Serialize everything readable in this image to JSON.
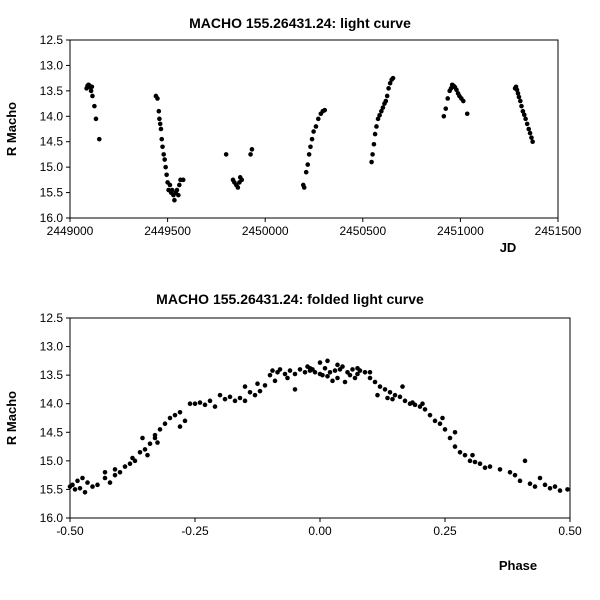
{
  "chart_data": [
    {
      "type": "scatter",
      "title": "MACHO 155.26431.24: light curve",
      "xlabel": "JD",
      "ylabel": "R Macho",
      "xlim": [
        2449000,
        2451500
      ],
      "ylim": [
        12.5,
        16.0
      ],
      "y_inverted": true,
      "grid": false,
      "xticks": [
        "2449000",
        "2449500",
        "2450000",
        "2450500",
        "2451000",
        "2451500"
      ],
      "yticks": [
        "12.5",
        "13.0",
        "13.5",
        "14.0",
        "14.5",
        "15.0",
        "15.5",
        "16.0"
      ],
      "series": [
        {
          "points": [
            [
              2449085,
              13.45
            ],
            [
              2449090,
              13.4
            ],
            [
              2449095,
              13.38
            ],
            [
              2449100,
              13.4
            ],
            [
              2449105,
              13.43
            ],
            [
              2449108,
              13.5
            ],
            [
              2449112,
              13.42
            ],
            [
              2449115,
              13.6
            ],
            [
              2449125,
              13.8
            ],
            [
              2449133,
              14.05
            ],
            [
              2449150,
              14.45
            ],
            [
              2449440,
              13.6
            ],
            [
              2449448,
              13.65
            ],
            [
              2449455,
              13.9
            ],
            [
              2449458,
              14.05
            ],
            [
              2449462,
              14.15
            ],
            [
              2449466,
              14.25
            ],
            [
              2449470,
              14.45
            ],
            [
              2449474,
              14.6
            ],
            [
              2449480,
              14.75
            ],
            [
              2449485,
              14.85
            ],
            [
              2449490,
              15.0
            ],
            [
              2449495,
              15.15
            ],
            [
              2449500,
              15.3
            ],
            [
              2449505,
              15.45
            ],
            [
              2449512,
              15.35
            ],
            [
              2449518,
              15.5
            ],
            [
              2449523,
              15.45
            ],
            [
              2449530,
              15.55
            ],
            [
              2449535,
              15.65
            ],
            [
              2449542,
              15.5
            ],
            [
              2449548,
              15.45
            ],
            [
              2449555,
              15.55
            ],
            [
              2449560,
              15.35
            ],
            [
              2449566,
              15.25
            ],
            [
              2449580,
              15.25
            ],
            [
              2449800,
              14.75
            ],
            [
              2449835,
              15.25
            ],
            [
              2449842,
              15.3
            ],
            [
              2449852,
              15.35
            ],
            [
              2449860,
              15.4
            ],
            [
              2449868,
              15.3
            ],
            [
              2449872,
              15.2
            ],
            [
              2449880,
              15.25
            ],
            [
              2449925,
              14.75
            ],
            [
              2449932,
              14.65
            ],
            [
              2450195,
              15.35
            ],
            [
              2450200,
              15.4
            ],
            [
              2450210,
              15.1
            ],
            [
              2450218,
              14.95
            ],
            [
              2450225,
              14.75
            ],
            [
              2450232,
              14.6
            ],
            [
              2450240,
              14.45
            ],
            [
              2450248,
              14.3
            ],
            [
              2450260,
              14.2
            ],
            [
              2450272,
              14.05
            ],
            [
              2450285,
              13.95
            ],
            [
              2450295,
              13.9
            ],
            [
              2450305,
              13.88
            ],
            [
              2450545,
              14.9
            ],
            [
              2450550,
              14.75
            ],
            [
              2450557,
              14.55
            ],
            [
              2450563,
              14.35
            ],
            [
              2450570,
              14.2
            ],
            [
              2450578,
              14.05
            ],
            [
              2450586,
              13.98
            ],
            [
              2450595,
              13.9
            ],
            [
              2450603,
              13.83
            ],
            [
              2450611,
              13.75
            ],
            [
              2450618,
              13.7
            ],
            [
              2450625,
              13.6
            ],
            [
              2450632,
              13.45
            ],
            [
              2450640,
              13.35
            ],
            [
              2450648,
              13.28
            ],
            [
              2450655,
              13.25
            ],
            [
              2450915,
              14.0
            ],
            [
              2450925,
              13.85
            ],
            [
              2450935,
              13.65
            ],
            [
              2450945,
              13.5
            ],
            [
              2450952,
              13.45
            ],
            [
              2450958,
              13.38
            ],
            [
              2450965,
              13.4
            ],
            [
              2450972,
              13.43
            ],
            [
              2450980,
              13.48
            ],
            [
              2450988,
              13.55
            ],
            [
              2450995,
              13.6
            ],
            [
              2451005,
              13.65
            ],
            [
              2451015,
              13.7
            ],
            [
              2451035,
              13.95
            ],
            [
              2451280,
              13.45
            ],
            [
              2451285,
              13.42
            ],
            [
              2451290,
              13.48
            ],
            [
              2451295,
              13.55
            ],
            [
              2451300,
              13.62
            ],
            [
              2451307,
              13.7
            ],
            [
              2451313,
              13.8
            ],
            [
              2451320,
              13.9
            ],
            [
              2451327,
              13.97
            ],
            [
              2451334,
              14.05
            ],
            [
              2451342,
              14.15
            ],
            [
              2451350,
              14.25
            ],
            [
              2451357,
              14.33
            ],
            [
              2451364,
              14.42
            ],
            [
              2451370,
              14.5
            ]
          ]
        }
      ]
    },
    {
      "type": "scatter",
      "title": "MACHO 155.26431.24: folded light curve",
      "xlabel": "Phase",
      "ylabel": "R Macho",
      "xlim": [
        -0.5,
        0.5
      ],
      "ylim": [
        12.5,
        16.0
      ],
      "y_inverted": true,
      "grid": false,
      "xticks": [
        "-0.50",
        "-0.25",
        "0.00",
        "0.25",
        "0.50"
      ],
      "yticks": [
        "12.5",
        "13.0",
        "13.5",
        "14.0",
        "14.5",
        "15.0",
        "15.5",
        "16.0"
      ],
      "series": [
        {
          "points": [
            [
              -0.5,
              15.45
            ],
            [
              -0.495,
              15.42
            ],
            [
              -0.49,
              15.5
            ],
            [
              -0.485,
              15.35
            ],
            [
              -0.48,
              15.48
            ],
            [
              -0.475,
              15.3
            ],
            [
              -0.47,
              15.55
            ],
            [
              -0.465,
              15.38
            ],
            [
              -0.455,
              15.45
            ],
            [
              -0.445,
              15.42
            ],
            [
              -0.43,
              15.3
            ],
            [
              -0.42,
              15.38
            ],
            [
              -0.41,
              15.25
            ],
            [
              -0.4,
              15.2
            ],
            [
              -0.39,
              15.1
            ],
            [
              -0.38,
              15.05
            ],
            [
              -0.375,
              14.95
            ],
            [
              -0.37,
              15.0
            ],
            [
              -0.36,
              14.85
            ],
            [
              -0.35,
              14.8
            ],
            [
              -0.345,
              14.9
            ],
            [
              -0.34,
              14.7
            ],
            [
              -0.33,
              14.6
            ],
            [
              -0.325,
              14.68
            ],
            [
              -0.32,
              14.45
            ],
            [
              -0.31,
              14.35
            ],
            [
              -0.3,
              14.25
            ],
            [
              -0.29,
              14.2
            ],
            [
              -0.28,
              14.15
            ],
            [
              -0.27,
              14.3
            ],
            [
              -0.25,
              14.0
            ],
            [
              -0.24,
              13.98
            ],
            [
              -0.23,
              14.02
            ],
            [
              -0.22,
              13.95
            ],
            [
              -0.21,
              14.05
            ],
            [
              -0.2,
              13.85
            ],
            [
              -0.19,
              13.92
            ],
            [
              -0.18,
              13.88
            ],
            [
              -0.17,
              13.95
            ],
            [
              -0.16,
              13.9
            ],
            [
              -0.15,
              13.7
            ],
            [
              -0.14,
              13.8
            ],
            [
              -0.13,
              13.85
            ],
            [
              -0.12,
              13.78
            ],
            [
              -0.11,
              13.68
            ],
            [
              -0.1,
              13.5
            ],
            [
              -0.09,
              13.6
            ],
            [
              -0.085,
              13.45
            ],
            [
              -0.08,
              13.4
            ],
            [
              -0.07,
              13.48
            ],
            [
              -0.065,
              13.55
            ],
            [
              -0.06,
              13.42
            ],
            [
              -0.05,
              13.48
            ],
            [
              -0.04,
              13.4
            ],
            [
              -0.03,
              13.45
            ],
            [
              -0.025,
              13.35
            ],
            [
              -0.02,
              13.42
            ],
            [
              -0.015,
              13.4
            ],
            [
              -0.01,
              13.45
            ],
            [
              0.0,
              13.48
            ],
            [
              0.005,
              13.5
            ],
            [
              0.01,
              13.38
            ],
            [
              0.015,
              13.52
            ],
            [
              0.02,
              13.45
            ],
            [
              0.025,
              13.6
            ],
            [
              0.03,
              13.42
            ],
            [
              0.035,
              13.55
            ],
            [
              0.04,
              13.4
            ],
            [
              0.045,
              13.35
            ],
            [
              0.05,
              13.62
            ],
            [
              0.055,
              13.45
            ],
            [
              0.06,
              13.5
            ],
            [
              0.065,
              13.4
            ],
            [
              0.07,
              13.55
            ],
            [
              0.075,
              13.48
            ],
            [
              0.08,
              13.42
            ],
            [
              0.09,
              13.45
            ],
            [
              0.1,
              13.55
            ],
            [
              0.11,
              13.62
            ],
            [
              0.12,
              13.7
            ],
            [
              0.13,
              13.75
            ],
            [
              0.14,
              13.8
            ],
            [
              0.15,
              13.85
            ],
            [
              0.16,
              13.88
            ],
            [
              0.17,
              13.95
            ],
            [
              0.18,
              14.0
            ],
            [
              0.19,
              14.02
            ],
            [
              0.2,
              14.05
            ],
            [
              0.21,
              14.1
            ],
            [
              0.22,
              14.2
            ],
            [
              0.23,
              14.3
            ],
            [
              0.24,
              14.35
            ],
            [
              0.25,
              14.45
            ],
            [
              0.26,
              14.6
            ],
            [
              0.27,
              14.75
            ],
            [
              0.28,
              14.85
            ],
            [
              0.29,
              14.9
            ],
            [
              0.3,
              15.0
            ],
            [
              0.31,
              15.02
            ],
            [
              0.32,
              15.05
            ],
            [
              0.34,
              15.1
            ],
            [
              0.36,
              15.15
            ],
            [
              0.38,
              15.2
            ],
            [
              0.4,
              15.35
            ],
            [
              0.42,
              15.4
            ],
            [
              0.44,
              15.3
            ],
            [
              0.45,
              15.42
            ],
            [
              0.46,
              15.48
            ],
            [
              0.48,
              15.52
            ],
            [
              0.495,
              15.5
            ],
            [
              -0.095,
              13.42
            ],
            [
              0.015,
              13.25
            ],
            [
              0.0,
              13.28
            ],
            [
              -0.02,
              13.38
            ],
            [
              0.035,
              13.32
            ],
            [
              0.075,
              13.38
            ],
            [
              -0.05,
              13.75
            ],
            [
              0.1,
              13.45
            ],
            [
              0.115,
              13.85
            ],
            [
              0.135,
              13.9
            ],
            [
              0.145,
              13.92
            ],
            [
              0.165,
              13.7
            ],
            [
              0.185,
              13.98
            ],
            [
              0.205,
              14.0
            ],
            [
              -0.33,
              14.55
            ],
            [
              -0.28,
              14.4
            ],
            [
              -0.43,
              15.2
            ],
            [
              -0.41,
              15.15
            ],
            [
              0.39,
              15.25
            ],
            [
              0.43,
              15.45
            ],
            [
              0.245,
              14.25
            ],
            [
              -0.26,
              14.0
            ],
            [
              -0.15,
              13.95
            ],
            [
              -0.125,
              13.65
            ],
            [
              0.41,
              15.0
            ],
            [
              -0.355,
              14.6
            ],
            [
              0.27,
              14.5
            ],
            [
              0.305,
              14.9
            ],
            [
              0.33,
              15.12
            ],
            [
              0.47,
              15.45
            ]
          ]
        }
      ]
    }
  ]
}
